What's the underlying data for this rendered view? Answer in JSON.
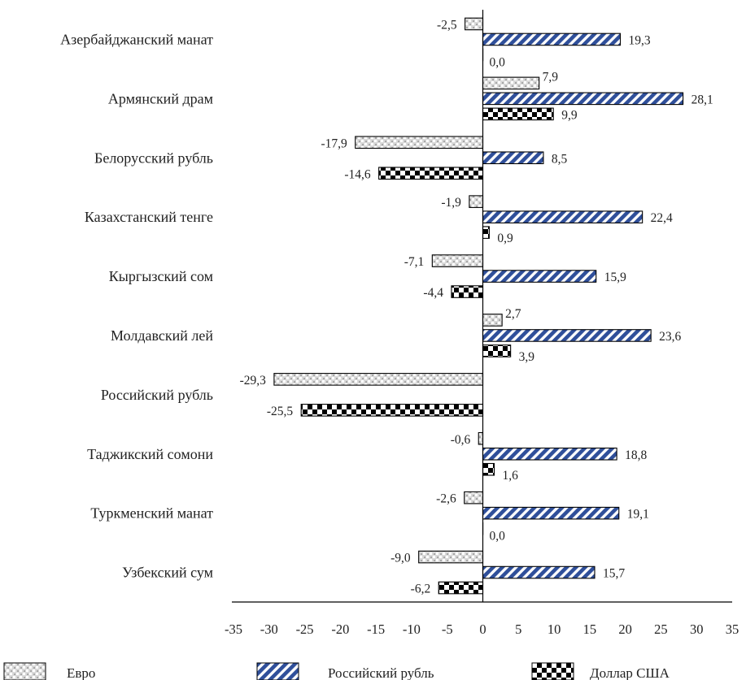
{
  "chart_data": {
    "type": "bar",
    "orientation": "horizontal",
    "title": "",
    "xlabel": "",
    "ylabel": "",
    "xlim": [
      -35,
      35
    ],
    "xticks": [
      -35,
      -30,
      -25,
      -20,
      -15,
      -10,
      -5,
      0,
      5,
      10,
      15,
      20,
      25,
      30,
      35
    ],
    "grid": false,
    "legend_position": "bottom",
    "categories": [
      "Азербайджанский манат",
      "Армянский драм",
      "Белорусский рубль",
      "Казахстанский тенге",
      "Кыргызский сом",
      "Молдавский лей",
      "Российский рубль",
      "Таджикский сомони",
      "Туркменский манат",
      "Узбекский сум"
    ],
    "series": [
      {
        "name": "Евро",
        "pattern": "grey-mosaic",
        "color": "#bdbdbd",
        "values": [
          -2.5,
          7.9,
          -17.9,
          -1.9,
          -7.1,
          2.7,
          -29.3,
          -0.6,
          -2.6,
          -9.0
        ],
        "labels": [
          "-2,5",
          "7,9",
          "-17,9",
          "-1,9",
          "-7,1",
          "2,7",
          "-29,3",
          "-0,6",
          "-2,6",
          "-9,0"
        ]
      },
      {
        "name": "Российский рубль",
        "pattern": "blue-diagonal-stripes",
        "color": "#2f4f9a",
        "values": [
          19.3,
          28.1,
          8.5,
          22.4,
          15.9,
          23.6,
          null,
          18.8,
          19.1,
          15.7
        ],
        "labels": [
          "19,3",
          "28,1",
          "8,5",
          "22,4",
          "15,9",
          "23,6",
          "",
          "18,8",
          "19,1",
          "15,7"
        ]
      },
      {
        "name": "Доллар США",
        "pattern": "black-checker",
        "color": "#000000",
        "values": [
          0.0,
          9.9,
          -14.6,
          0.9,
          -4.4,
          3.9,
          -25.5,
          1.6,
          0.0,
          -6.2
        ],
        "labels": [
          "0,0",
          "9,9",
          "-14,6",
          "0,9",
          "-4,4",
          "3,9",
          "-25,5",
          "1,6",
          "0,0",
          "-6,2"
        ]
      }
    ]
  }
}
